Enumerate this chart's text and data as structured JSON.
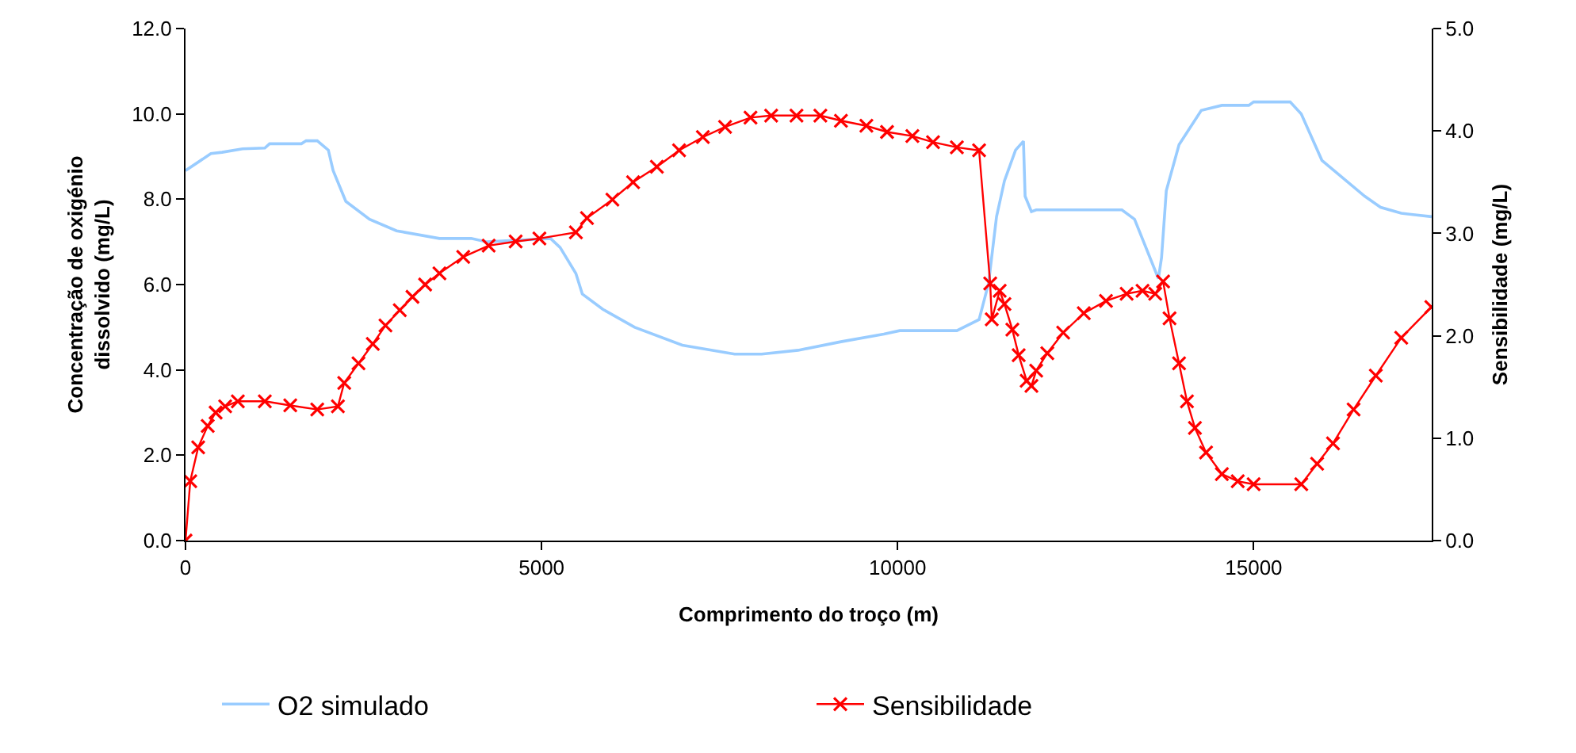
{
  "chart_data": {
    "type": "line",
    "xlabel": "Comprimento do troço (m)",
    "ylabel": "Concentração de oxigénio\ndissolvido (mg/L)",
    "y2label": "Sensibilidade (mg/L)",
    "xlim": [
      0,
      17500
    ],
    "xticks": [
      0,
      5000,
      10000,
      15000
    ],
    "ylim": [
      0,
      12
    ],
    "yticks": [
      {
        "value": 0,
        "label": "0.0"
      },
      {
        "value": 2,
        "label": "2.0"
      },
      {
        "value": 4,
        "label": "4.0"
      },
      {
        "value": 6,
        "label": "6.0"
      },
      {
        "value": 8,
        "label": "8.0"
      },
      {
        "value": 10,
        "label": "10.0"
      },
      {
        "value": 12,
        "label": "12.0"
      }
    ],
    "y2lim": [
      0,
      5
    ],
    "y2ticks": [
      {
        "value": 0,
        "label": "0.0"
      },
      {
        "value": 1,
        "label": "1.0"
      },
      {
        "value": 2,
        "label": "2.0"
      },
      {
        "value": 3,
        "label": "3.0"
      },
      {
        "value": 4,
        "label": "4.0"
      },
      {
        "value": 5,
        "label": "5.0"
      }
    ],
    "legend": "bottom",
    "series": [
      {
        "name": "O2 simulado",
        "color": "#99ccff",
        "marker": "none",
        "x": [
          0,
          357,
          513,
          802,
          1114,
          1181,
          1627,
          1694,
          1850,
          2006,
          2073,
          2251,
          2585,
          2964,
          3566,
          4012,
          4234,
          5126,
          5260,
          5482,
          5572,
          5861,
          6307,
          6976,
          7711,
          8090,
          8603,
          9204,
          9806,
          10029,
          10832,
          11144,
          11277,
          11389,
          11500,
          11656,
          11767,
          11790,
          11879,
          11946,
          13149,
          13327,
          13662,
          13706,
          13773,
          13952,
          14264,
          14553,
          14932,
          14999,
          15512,
          15668,
          15958,
          16559,
          16782,
          17072,
          17500
        ],
        "values": [
          8.67,
          9.07,
          9.1,
          9.18,
          9.2,
          9.3,
          9.3,
          9.37,
          9.37,
          9.15,
          8.67,
          7.95,
          7.53,
          7.26,
          7.08,
          7.08,
          7.0,
          7.08,
          6.87,
          6.26,
          5.78,
          5.42,
          5.0,
          4.58,
          4.37,
          4.37,
          4.46,
          4.66,
          4.84,
          4.92,
          4.92,
          5.18,
          6.03,
          7.59,
          8.43,
          9.15,
          9.36,
          8.07,
          7.71,
          7.75,
          7.75,
          7.53,
          6.14,
          6.63,
          8.2,
          9.28,
          10.08,
          10.2,
          10.2,
          10.28,
          10.28,
          10.0,
          8.91,
          8.07,
          7.81,
          7.67,
          7.59
        ]
      },
      {
        "name": "Sensibilidade",
        "color": "#ff0000",
        "marker": "cross",
        "axis": "y2",
        "x": [
          0,
          67,
          178,
          312,
          423,
          557,
          735,
          1114,
          1471,
          1850,
          2140,
          2229,
          2429,
          2630,
          2808,
          3009,
          3187,
          3365,
          3566,
          3900,
          4257,
          4636,
          4970,
          5482,
          5638,
          5995,
          6285,
          6619,
          6931,
          7265,
          7577,
          7934,
          8224,
          8580,
          8915,
          9204,
          9561,
          9851,
          10207,
          10497,
          10832,
          11144,
          11300,
          11322,
          11433,
          11500,
          11611,
          11700,
          11812,
          11879,
          11946,
          12102,
          12325,
          12614,
          12926,
          13216,
          13439,
          13617,
          13728,
          13818,
          13952,
          14063,
          14175,
          14331,
          14553,
          14776,
          14999,
          15668,
          15891,
          16114,
          16403,
          16715,
          17072,
          17495
        ],
        "values": [
          0,
          0.58,
          0.91,
          1.12,
          1.25,
          1.31,
          1.36,
          1.36,
          1.32,
          1.28,
          1.31,
          1.54,
          1.73,
          1.92,
          2.1,
          2.25,
          2.38,
          2.5,
          2.61,
          2.77,
          2.88,
          2.92,
          2.95,
          3.01,
          3.15,
          3.33,
          3.5,
          3.65,
          3.81,
          3.94,
          4.04,
          4.13,
          4.15,
          4.15,
          4.15,
          4.1,
          4.05,
          3.99,
          3.95,
          3.89,
          3.84,
          3.81,
          2.51,
          2.16,
          2.44,
          2.31,
          2.06,
          1.81,
          1.56,
          1.51,
          1.66,
          1.83,
          2.03,
          2.22,
          2.34,
          2.41,
          2.44,
          2.41,
          2.53,
          2.17,
          1.73,
          1.36,
          1.1,
          0.86,
          0.65,
          0.58,
          0.55,
          0.55,
          0.75,
          0.95,
          1.28,
          1.61,
          1.98,
          2.28
        ]
      }
    ]
  }
}
